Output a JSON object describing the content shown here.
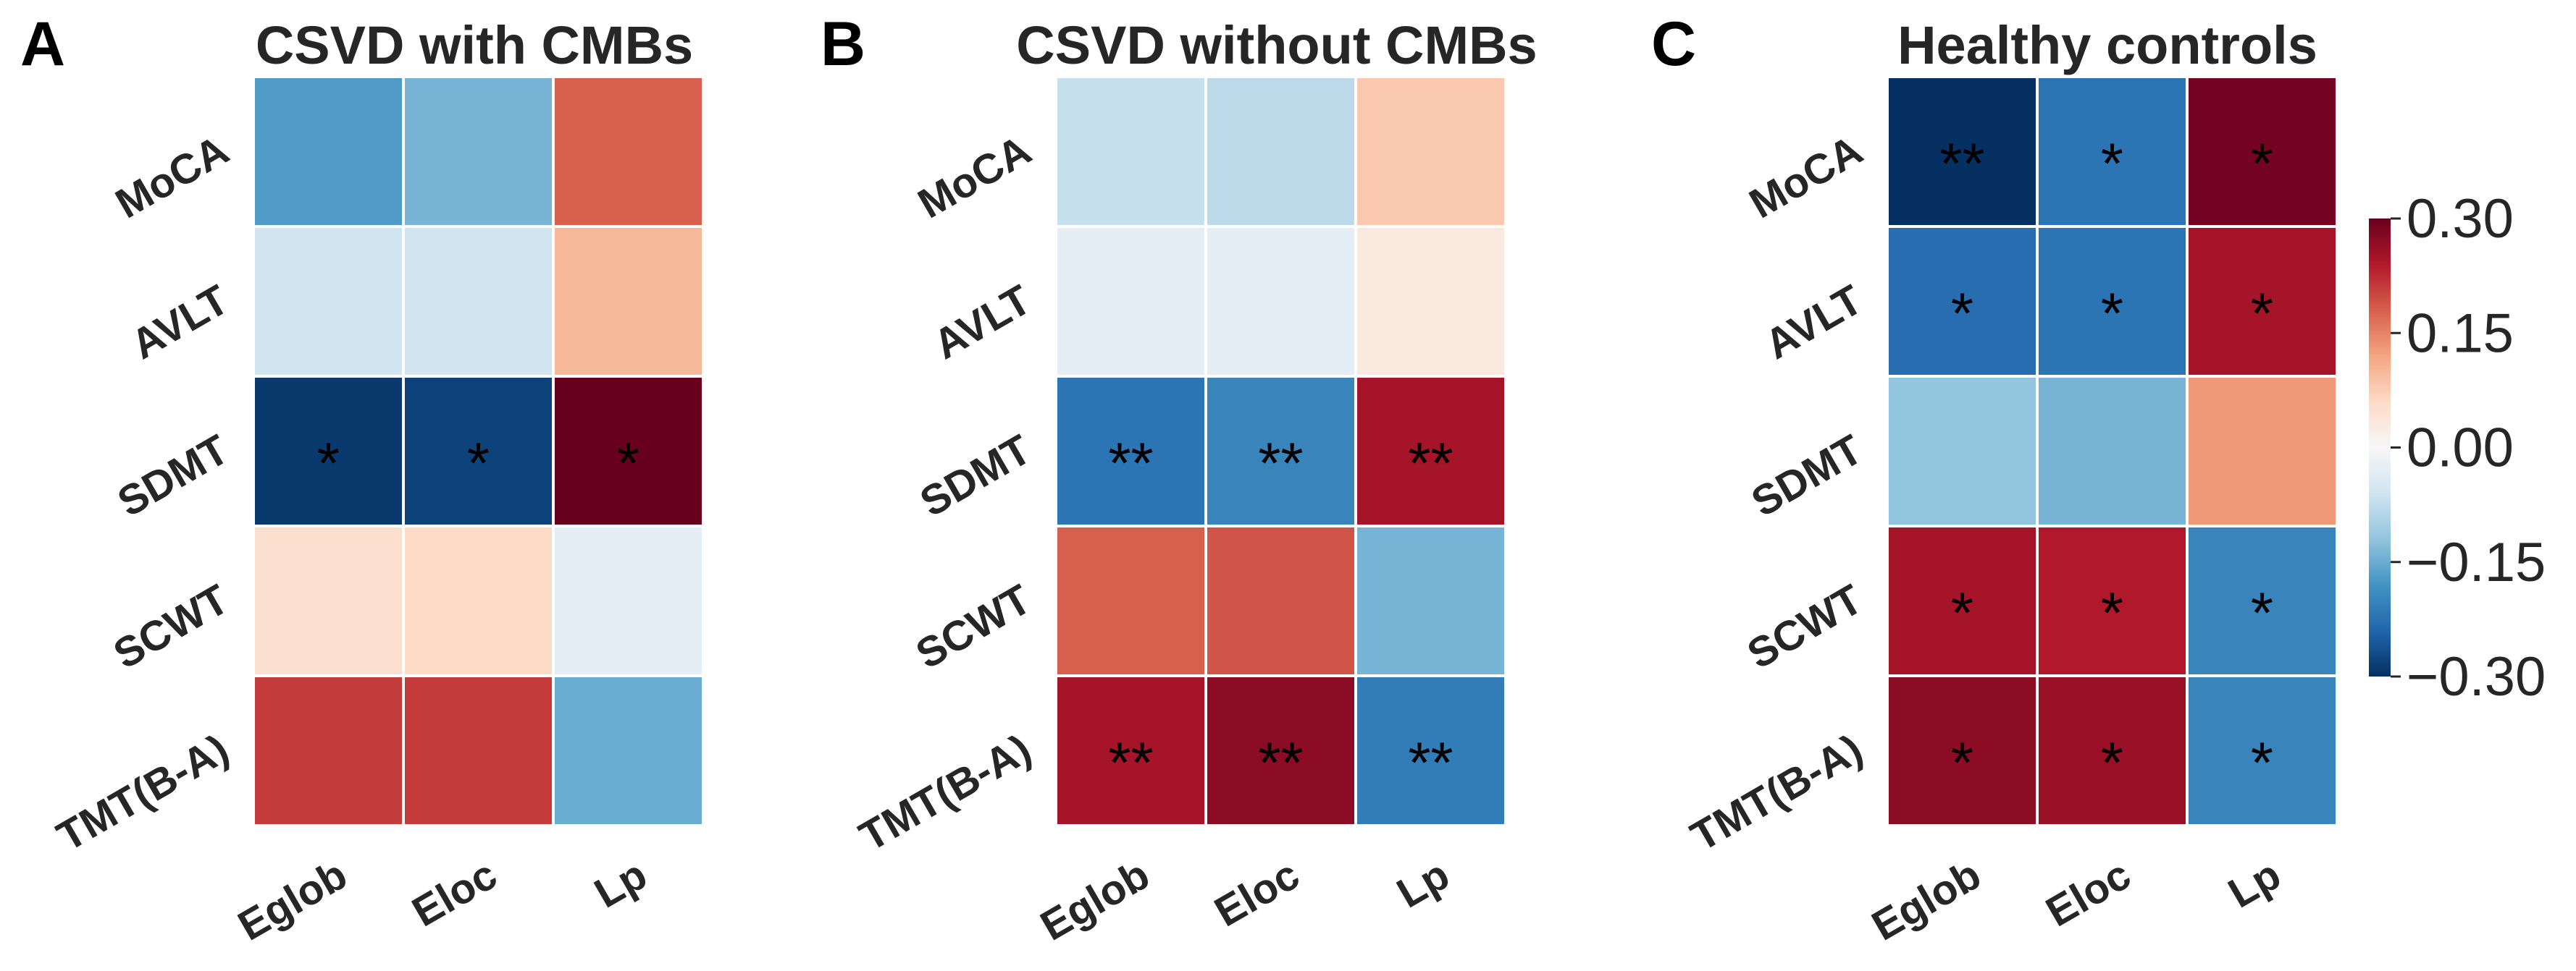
{
  "chart_data": [
    {
      "type": "heatmap",
      "panel": "A",
      "title": "CSVD with CMBs",
      "rows": [
        "MoCA",
        "AVLT",
        "SDMT",
        "SCWT",
        "TMT(B-A)"
      ],
      "cols": [
        "Eglob",
        "Eloc",
        "Lp"
      ],
      "values": [
        [
          -0.17,
          -0.14,
          0.18
        ],
        [
          -0.06,
          -0.06,
          0.1
        ],
        [
          -0.29,
          -0.28,
          0.32
        ],
        [
          0.05,
          0.06,
          -0.03
        ],
        [
          0.21,
          0.21,
          -0.15
        ]
      ],
      "annotations": [
        [
          "",
          "",
          ""
        ],
        [
          "",
          "",
          ""
        ],
        [
          "*",
          "*",
          "*"
        ],
        [
          "",
          "",
          ""
        ],
        [
          "",
          "",
          ""
        ]
      ]
    },
    {
      "type": "heatmap",
      "panel": "B",
      "title": "CSVD without CMBs",
      "rows": [
        "MoCA",
        "AVLT",
        "SDMT",
        "SCWT",
        "TMT(B-A)"
      ],
      "cols": [
        "Eglob",
        "Eloc",
        "Lp"
      ],
      "values": [
        [
          -0.07,
          -0.08,
          0.08
        ],
        [
          -0.03,
          -0.03,
          0.03
        ],
        [
          -0.22,
          -0.2,
          0.25
        ],
        [
          0.18,
          0.19,
          -0.14
        ],
        [
          0.25,
          0.27,
          -0.21
        ]
      ],
      "annotations": [
        [
          "",
          "",
          ""
        ],
        [
          "",
          "",
          ""
        ],
        [
          "**",
          "**",
          "**"
        ],
        [
          "",
          "",
          ""
        ],
        [
          "**",
          "**",
          "**"
        ]
      ]
    },
    {
      "type": "heatmap",
      "panel": "C",
      "title": "Healthy controls",
      "rows": [
        "MoCA",
        "AVLT",
        "SDMT",
        "SCWT",
        "TMT(B-A)"
      ],
      "cols": [
        "Eglob",
        "Eloc",
        "Lp"
      ],
      "values": [
        [
          -0.3,
          -0.22,
          0.29
        ],
        [
          -0.23,
          -0.22,
          0.25
        ],
        [
          -0.12,
          -0.14,
          0.13
        ],
        [
          0.25,
          0.24,
          -0.2
        ],
        [
          0.27,
          0.26,
          -0.2
        ]
      ],
      "annotations": [
        [
          "**",
          "*",
          "*"
        ],
        [
          "*",
          "*",
          "*"
        ],
        [
          "",
          "",
          ""
        ],
        [
          "*",
          "*",
          "*"
        ],
        [
          "*",
          "*",
          "*"
        ]
      ]
    }
  ],
  "colorbar": {
    "colormap": "RdBu_r",
    "vmin": -0.3,
    "vmax": 0.3,
    "ticks": [
      0.3,
      0.15,
      0.0,
      -0.15,
      -0.3
    ],
    "tick_labels": [
      "0.30",
      "0.15",
      "0.00",
      "−0.15",
      "−0.30"
    ]
  }
}
